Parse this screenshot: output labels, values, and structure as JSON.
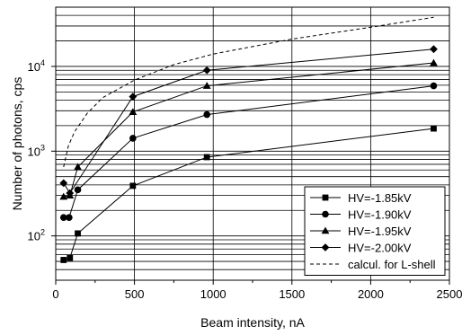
{
  "chart_data": {
    "type": "line",
    "xlabel": "Beam intensity, nA",
    "ylabel": "Number of photons, cps",
    "xlim": [
      0,
      2500
    ],
    "ylim": [
      30,
      50000
    ],
    "yscale": "log",
    "grid": true,
    "legend_position": "bottom-right",
    "x_ticks": [
      0,
      500,
      1000,
      1500,
      2000,
      2500
    ],
    "x_tick_labels": [
      "0",
      "500",
      "1000",
      "1500",
      "2000",
      "2500"
    ],
    "y_ticks": [
      100,
      1000,
      10000
    ],
    "y_tick_labels": [
      "10",
      "10",
      "10"
    ],
    "y_tick_exponents": [
      "2",
      "3",
      "4"
    ],
    "series": [
      {
        "name": "HV=-1.85kV",
        "marker": "square",
        "style": "solid",
        "x": [
          50,
          90,
          140,
          490,
          960,
          2400
        ],
        "y": [
          52,
          55,
          107,
          390,
          850,
          1850
        ]
      },
      {
        "name": "HV=-1.90kV",
        "marker": "circle",
        "style": "solid",
        "x": [
          50,
          85,
          140,
          490,
          960,
          2400
        ],
        "y": [
          165,
          165,
          350,
          1420,
          2700,
          5900
        ]
      },
      {
        "name": "HV=-1.95kV",
        "marker": "triangle",
        "style": "solid",
        "x": [
          50,
          90,
          140,
          490,
          960,
          2400
        ],
        "y": [
          290,
          300,
          650,
          2900,
          5900,
          11000
        ]
      },
      {
        "name": "HV=-2.00kV",
        "marker": "diamond",
        "style": "solid",
        "x": [
          50,
          90,
          490,
          960,
          2400
        ],
        "y": [
          420,
          320,
          4400,
          9000,
          16000
        ]
      },
      {
        "name": "calcul. for L-shell",
        "marker": "none",
        "style": "dashed",
        "x": [
          50,
          80,
          120,
          200,
          300,
          500,
          750,
          1000,
          1500,
          2000,
          2400
        ],
        "y": [
          650,
          1150,
          1700,
          2800,
          4300,
          6900,
          10500,
          14000,
          21000,
          29000,
          38000
        ]
      }
    ]
  }
}
